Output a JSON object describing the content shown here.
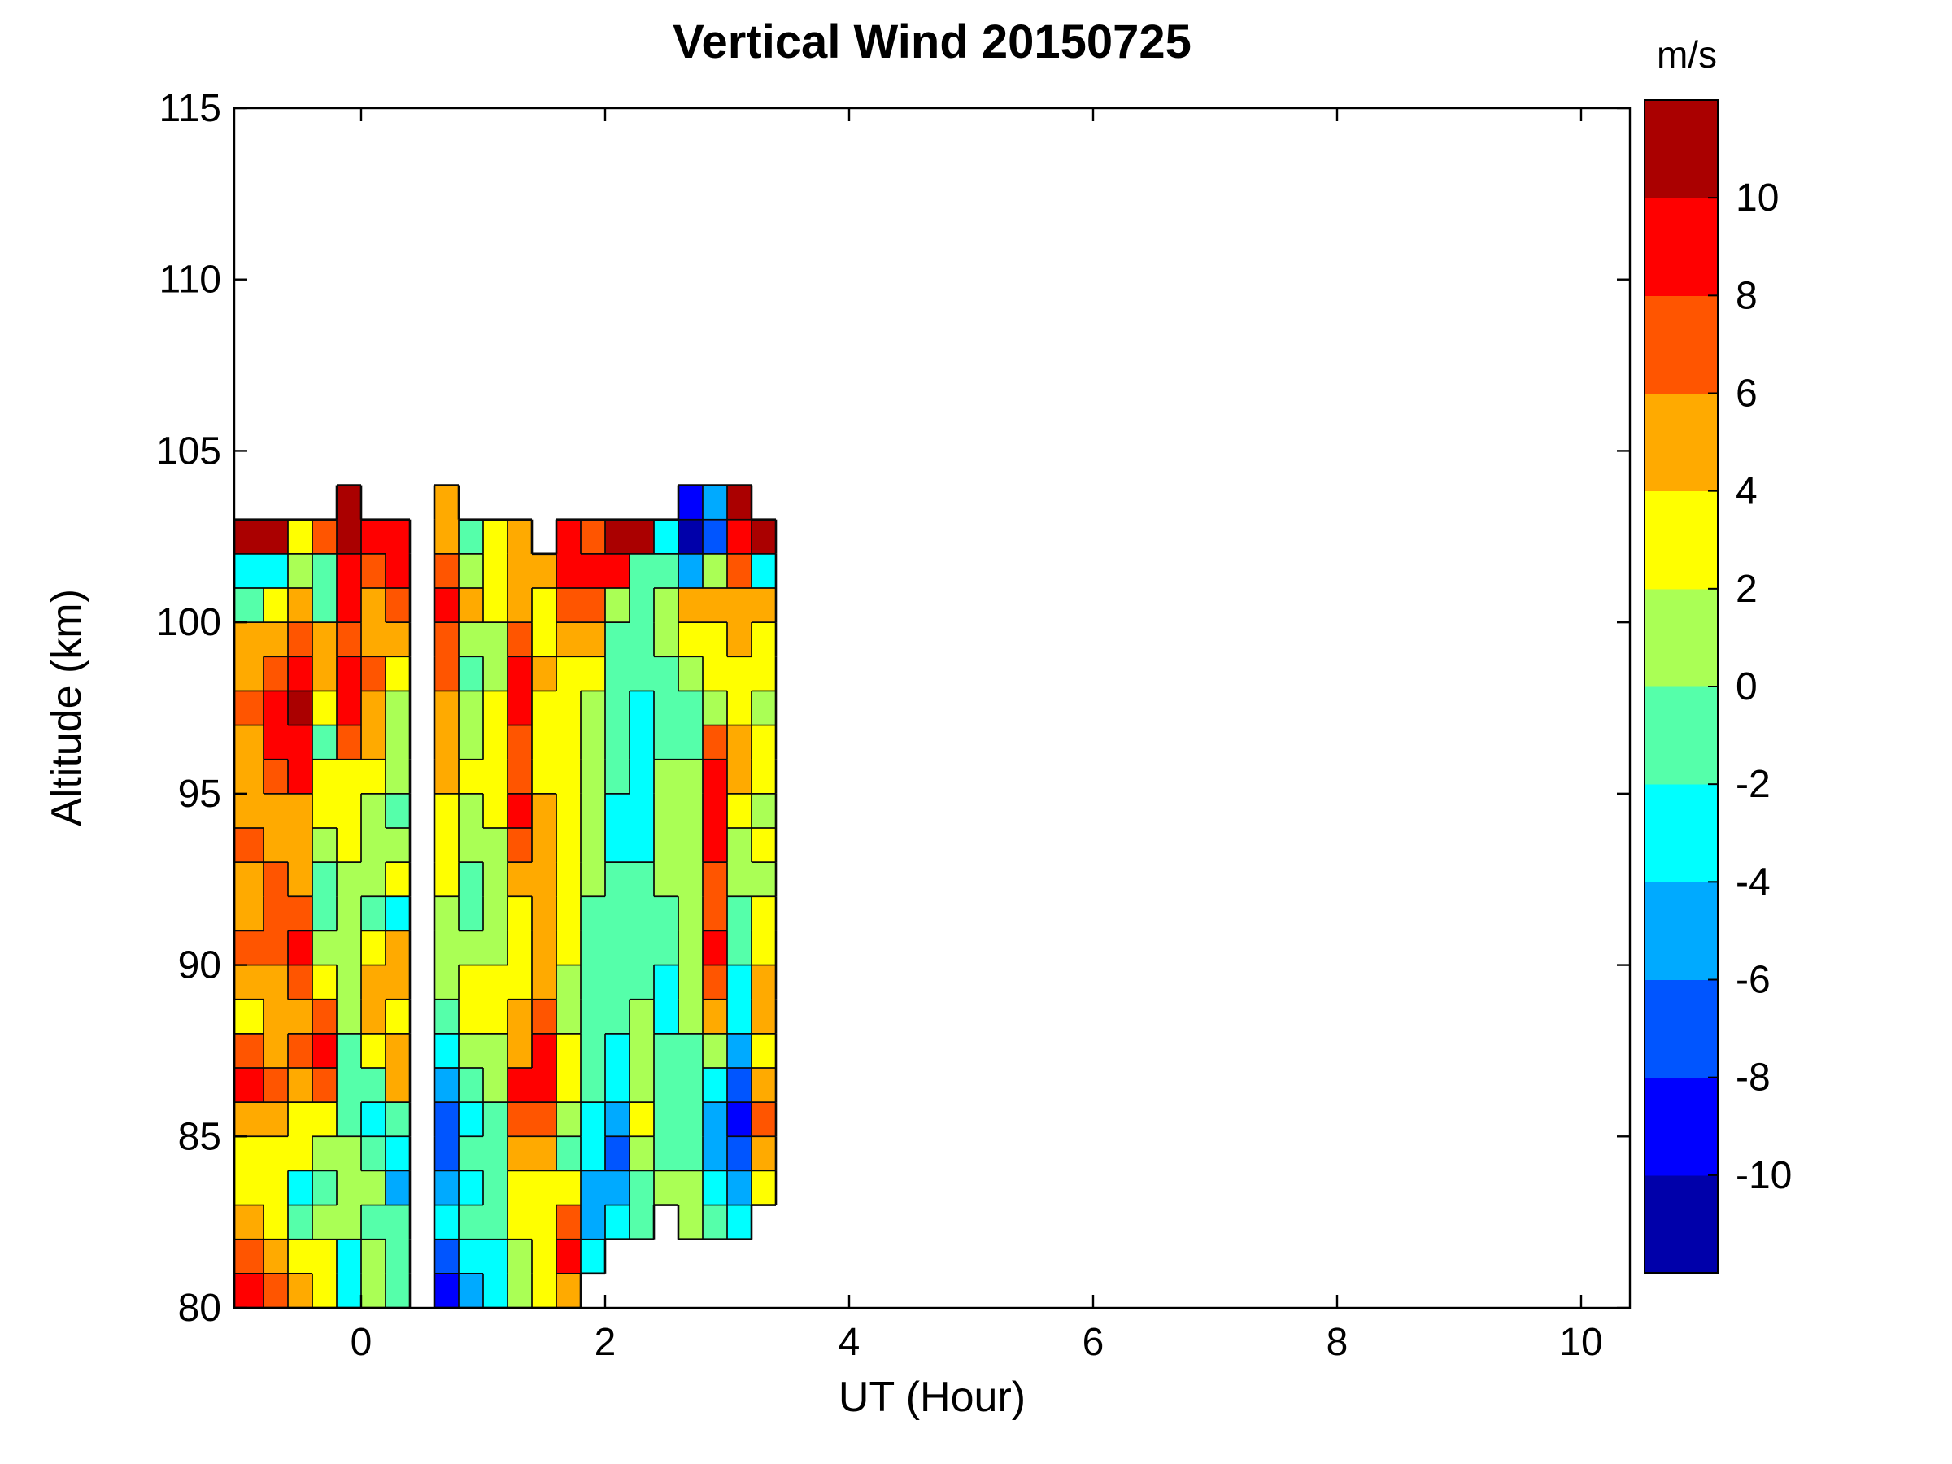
{
  "title": "Vertical Wind 20150725",
  "axes": {
    "xlabel": "UT (Hour)",
    "ylabel": "Altitude (km)",
    "x_tick_labels": [
      "0",
      "2",
      "4",
      "6",
      "8",
      "10"
    ],
    "y_tick_labels": [
      "80",
      "85",
      "90",
      "95",
      "100",
      "105",
      "110",
      "115"
    ]
  },
  "colorbar": {
    "unit_label": "m/s",
    "tick_labels": [
      "10",
      "8",
      "6",
      "4",
      "2",
      "0",
      "-2",
      "-4",
      "-6",
      "-8",
      "-10"
    ],
    "band_colors_bottom_to_top": [
      "#0000AA",
      "#0000FF",
      "#0055FF",
      "#00AAFF",
      "#00FFFF",
      "#55FFAA",
      "#AAFF55",
      "#FFFF00",
      "#FFAA00",
      "#FF5500",
      "#FF0000",
      "#AA0000"
    ]
  },
  "chart_data": {
    "type": "heatmap",
    "subtype": "filled-contour",
    "title": "Vertical Wind 20150725",
    "xlabel": "UT (Hour)",
    "ylabel": "Altitude (km)",
    "units": "m/s",
    "xlim": [
      -1.04,
      10.4
    ],
    "ylim": [
      80,
      115
    ],
    "x_tick_values": [
      0,
      2,
      4,
      6,
      8,
      10
    ],
    "y_tick_values": [
      80,
      85,
      90,
      95,
      100,
      105,
      110,
      115
    ],
    "levels": [
      -10,
      -8,
      -6,
      -4,
      -2,
      0,
      2,
      4,
      6,
      8,
      10
    ],
    "band_colors": [
      "#0000AA",
      "#0000FF",
      "#0055FF",
      "#00AAFF",
      "#00FFFF",
      "#55FFAA",
      "#AAFF55",
      "#FFFF00",
      "#FFAA00",
      "#FF5500",
      "#FF0000",
      "#AA0000"
    ],
    "legend_position": "right-colorbar",
    "grid": false,
    "note": "white cells = no data (gap near UT 0.4-0.6, no data after UT 3.4, ragged top edge 102-103.5 km, bottom-right notch)",
    "x_edges": [
      -1.04,
      -0.8,
      -0.6,
      -0.4,
      -0.2,
      0.0,
      0.2,
      0.4,
      0.6,
      0.8,
      1.0,
      1.2,
      1.4,
      1.6,
      1.8,
      2.0,
      2.2,
      2.4,
      2.6,
      2.8,
      3.0,
      3.2,
      3.4
    ],
    "y_edges": [
      104,
      103,
      102,
      101,
      100,
      99,
      98,
      97,
      96,
      95,
      94,
      93,
      92,
      91,
      90,
      89,
      88,
      87,
      86,
      85,
      84,
      83,
      82,
      81,
      80
    ],
    "values": [
      [
        null,
        null,
        null,
        null,
        11,
        null,
        null,
        null,
        5,
        null,
        null,
        null,
        null,
        null,
        null,
        null,
        null,
        null,
        -9,
        -5,
        11,
        null
      ],
      [
        11,
        11,
        3,
        7,
        11,
        9,
        9,
        null,
        5,
        -1,
        3,
        5,
        null,
        9,
        7,
        11,
        11,
        -3,
        -11,
        -7,
        9,
        11
      ],
      [
        -3,
        -3,
        1,
        -1,
        9,
        7,
        9,
        null,
        7,
        1,
        3,
        5,
        5,
        9,
        9,
        9,
        -1,
        -1,
        -5,
        1,
        7,
        -3
      ],
      [
        -1,
        3,
        5,
        -1,
        9,
        5,
        7,
        null,
        9,
        5,
        3,
        5,
        3,
        7,
        7,
        1,
        -1,
        1,
        5,
        5,
        5,
        5
      ],
      [
        5,
        5,
        7,
        5,
        7,
        5,
        5,
        null,
        7,
        1,
        1,
        7,
        3,
        5,
        5,
        -1,
        -1,
        1,
        3,
        3,
        5,
        3
      ],
      [
        5,
        7,
        9,
        5,
        9,
        7,
        3,
        null,
        7,
        -1,
        1,
        9,
        5,
        3,
        3,
        -1,
        -1,
        -1,
        1,
        3,
        3,
        3
      ],
      [
        7,
        9,
        11,
        3,
        9,
        5,
        1,
        null,
        5,
        1,
        3,
        9,
        3,
        3,
        1,
        -1,
        -3,
        -1,
        -1,
        1,
        3,
        1
      ],
      [
        5,
        9,
        9,
        -1,
        7,
        5,
        1,
        null,
        5,
        1,
        3,
        7,
        3,
        3,
        1,
        -1,
        -3,
        -1,
        -1,
        7,
        5,
        3
      ],
      [
        5,
        7,
        9,
        3,
        3,
        3,
        1,
        null,
        5,
        3,
        3,
        7,
        3,
        3,
        1,
        -1,
        -3,
        1,
        1,
        9,
        5,
        3
      ],
      [
        5,
        5,
        5,
        3,
        3,
        1,
        -1,
        null,
        3,
        1,
        3,
        9,
        5,
        3,
        1,
        -3,
        -3,
        1,
        1,
        9,
        3,
        1
      ],
      [
        7,
        5,
        5,
        1,
        3,
        1,
        1,
        null,
        3,
        1,
        1,
        7,
        5,
        3,
        1,
        -3,
        -3,
        1,
        1,
        9,
        1,
        3
      ],
      [
        5,
        7,
        5,
        -1,
        1,
        1,
        3,
        null,
        3,
        -1,
        1,
        5,
        5,
        3,
        1,
        -1,
        -1,
        1,
        1,
        7,
        1,
        1
      ],
      [
        5,
        7,
        7,
        -1,
        1,
        -1,
        -3,
        null,
        1,
        -1,
        1,
        3,
        5,
        3,
        -1,
        -1,
        -1,
        -1,
        1,
        7,
        -1,
        3
      ],
      [
        7,
        7,
        9,
        1,
        1,
        3,
        5,
        null,
        1,
        1,
        1,
        3,
        5,
        3,
        -1,
        -1,
        -1,
        -1,
        1,
        9,
        -1,
        3
      ],
      [
        5,
        5,
        7,
        3,
        1,
        5,
        5,
        null,
        1,
        3,
        3,
        3,
        5,
        1,
        -1,
        -1,
        -1,
        -3,
        1,
        7,
        -3,
        5
      ],
      [
        3,
        5,
        5,
        7,
        1,
        5,
        3,
        null,
        -1,
        3,
        3,
        5,
        7,
        1,
        -1,
        -1,
        1,
        -3,
        1,
        5,
        -3,
        5
      ],
      [
        7,
        5,
        7,
        9,
        -1,
        3,
        5,
        null,
        -3,
        1,
        1,
        5,
        9,
        3,
        -1,
        -3,
        1,
        -1,
        -1,
        1,
        -5,
        3
      ],
      [
        9,
        7,
        5,
        7,
        -1,
        -1,
        5,
        null,
        -5,
        -1,
        1,
        9,
        9,
        3,
        -1,
        -3,
        1,
        -1,
        -1,
        -3,
        -7,
        5
      ],
      [
        5,
        5,
        3,
        3,
        -1,
        -3,
        -1,
        null,
        -7,
        -3,
        -1,
        7,
        7,
        1,
        -3,
        -5,
        3,
        -1,
        -1,
        -5,
        -9,
        7
      ],
      [
        3,
        3,
        3,
        1,
        1,
        -1,
        -3,
        null,
        -7,
        -1,
        -1,
        5,
        5,
        -1,
        -3,
        -7,
        1,
        -1,
        -1,
        -5,
        -7,
        5
      ],
      [
        3,
        3,
        -3,
        -1,
        1,
        1,
        -5,
        null,
        -5,
        -3,
        -1,
        3,
        3,
        3,
        -5,
        -5,
        -1,
        1,
        1,
        -3,
        -5,
        3
      ],
      [
        5,
        3,
        -1,
        1,
        1,
        -1,
        -1,
        null,
        -3,
        -1,
        -1,
        3,
        3,
        7,
        -5,
        -3,
        -1,
        null,
        1,
        -1,
        -3,
        null
      ],
      [
        7,
        5,
        3,
        3,
        -3,
        1,
        -1,
        null,
        -7,
        -3,
        -3,
        1,
        3,
        9,
        -3,
        null,
        null,
        null,
        null,
        null,
        null,
        null
      ],
      [
        9,
        7,
        5,
        3,
        -3,
        1,
        -1,
        null,
        -9,
        -5,
        -3,
        1,
        3,
        5,
        null,
        null,
        null,
        null,
        null,
        null,
        null,
        null
      ]
    ]
  }
}
